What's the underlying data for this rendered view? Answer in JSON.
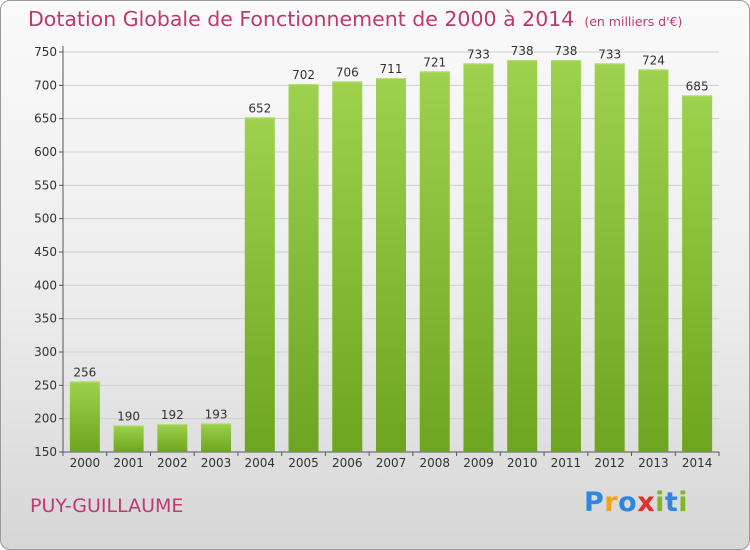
{
  "chart_data": {
    "type": "bar",
    "title": "Dotation Globale de Fonctionnement de 2000 à 2014",
    "unit_note": "(en milliers d'€)",
    "categories": [
      "2000",
      "2001",
      "2002",
      "2003",
      "2004",
      "2005",
      "2006",
      "2007",
      "2008",
      "2009",
      "2010",
      "2011",
      "2012",
      "2013",
      "2014"
    ],
    "values": [
      256,
      190,
      192,
      193,
      652,
      702,
      706,
      711,
      721,
      733,
      738,
      738,
      733,
      724,
      685
    ],
    "ylim": [
      150,
      750
    ],
    "yticks": [
      150,
      200,
      250,
      300,
      350,
      400,
      450,
      500,
      550,
      600,
      650,
      700,
      750
    ],
    "grid": true,
    "bar_color_top": "#9ed24e",
    "bar_color_bottom": "#6da420"
  },
  "commune": "PUY-GUILLAUME",
  "logo": {
    "letters": [
      "P",
      "r",
      "o",
      "x",
      "i",
      "t",
      "i"
    ],
    "colors": [
      "#2e86de",
      "#f2a31a",
      "#2e86de",
      "#e0302a",
      "#82b628",
      "#2e86de",
      "#82b628"
    ]
  },
  "colors": {
    "title": "#c0386e",
    "grid": "#cfcfcf"
  }
}
